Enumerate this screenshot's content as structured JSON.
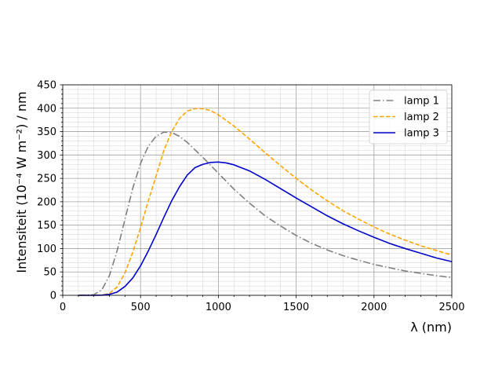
{
  "chart_data": {
    "type": "line",
    "title": "",
    "xlabel": "λ (nm)",
    "ylabel": "Intensiteit (10⁻⁴ W m⁻²) / nm",
    "xlim": [
      0,
      2500
    ],
    "ylim": [
      0,
      450
    ],
    "x_ticks": [
      0,
      500,
      1000,
      1500,
      2000,
      2500
    ],
    "y_ticks": [
      0,
      50,
      100,
      150,
      200,
      250,
      300,
      350,
      400,
      450
    ],
    "x_tick_labels": [
      "0",
      "500",
      "1000",
      "1500",
      "2000",
      "2500"
    ],
    "y_tick_labels": [
      "0",
      "50",
      "100",
      "150",
      "200",
      "250",
      "300",
      "350",
      "400",
      "450"
    ],
    "grid": "major and minor",
    "legend_position": "top-right",
    "series": [
      {
        "name": "lamp 1",
        "color": "#808080",
        "line_style": "dash-dot",
        "x": [
          100,
          200,
          250,
          300,
          350,
          400,
          450,
          500,
          550,
          600,
          650,
          700,
          750,
          800,
          900,
          1000,
          1100,
          1200,
          1300,
          1400,
          1500,
          1600,
          1700,
          1800,
          1900,
          2000,
          2100,
          2200,
          2300,
          2400,
          2500
        ],
        "y": [
          0,
          1.4,
          11,
          42,
          96,
          163,
          229,
          282,
          319,
          340,
          349,
          348,
          340,
          327,
          295,
          261,
          227,
          197,
          170,
          148,
          128,
          111,
          97,
          85,
          75,
          66,
          59,
          52,
          47,
          42,
          38
        ]
      },
      {
        "name": "lamp 2",
        "color": "#ffa500",
        "line_style": "dashed",
        "x": [
          100,
          200,
          250,
          300,
          350,
          400,
          450,
          500,
          550,
          600,
          650,
          700,
          750,
          800,
          850,
          900,
          950,
          1000,
          1100,
          1200,
          1300,
          1400,
          1500,
          1600,
          1700,
          1800,
          1900,
          2000,
          2100,
          2200,
          2300,
          2400,
          2500
        ],
        "y": [
          0,
          0,
          0.5,
          4,
          18,
          48,
          92,
          145,
          202,
          255,
          310,
          350,
          378,
          394,
          399,
          399,
          395,
          386,
          362,
          334,
          305,
          277,
          250,
          225,
          202,
          181,
          163,
          146,
          131,
          118,
          106,
          96,
          86
        ]
      },
      {
        "name": "lamp 3",
        "color": "#0000cc",
        "line_style": "solid",
        "x": [
          100,
          200,
          250,
          300,
          350,
          400,
          450,
          500,
          550,
          600,
          650,
          700,
          750,
          800,
          850,
          900,
          950,
          1000,
          1050,
          1100,
          1200,
          1300,
          1400,
          1500,
          1600,
          1700,
          1800,
          1900,
          2000,
          2100,
          2200,
          2300,
          2400,
          2500
        ],
        "y": [
          0,
          0,
          0.3,
          2,
          7,
          19,
          37,
          63,
          95,
          130,
          167,
          202,
          232,
          257,
          273,
          280,
          284,
          285,
          283,
          279,
          266,
          248,
          228,
          208,
          189,
          170,
          153,
          138,
          124,
          111,
          100,
          90,
          80,
          72
        ]
      }
    ]
  }
}
